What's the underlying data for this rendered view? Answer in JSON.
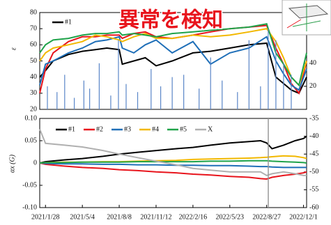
{
  "chart_data": [
    {
      "type": "line",
      "ylabel": "ε",
      "annotation": "異常を検知",
      "xlim": [
        -15,
        680
      ],
      "ylim": [
        20,
        80
      ],
      "yticks": [
        20,
        30,
        40,
        50,
        60,
        70,
        80
      ],
      "y2lim": [
        0,
        84
      ],
      "y2ticks": [
        20,
        40
      ],
      "x": [
        -15,
        0,
        20,
        60,
        96,
        130,
        160,
        192,
        200,
        230,
        260,
        288,
        330,
        384,
        430,
        480,
        530,
        576,
        600,
        620,
        640,
        660,
        680
      ],
      "series": [
        {
          "name": "#1",
          "color": "#000000",
          "values": [
            40,
            44,
            50,
            54,
            56,
            57,
            58,
            57,
            48,
            50,
            52,
            47,
            50,
            55,
            56,
            58,
            60,
            61,
            40,
            36,
            32,
            30,
            40
          ]
        },
        {
          "color": "#e8141c",
          "values": [
            30,
            45,
            55,
            62,
            65,
            65,
            66,
            66,
            64,
            67,
            68,
            65,
            64,
            66,
            68,
            70,
            71,
            72,
            58,
            48,
            36,
            30,
            50
          ]
        },
        {
          "color": "#1f6fb8",
          "values": [
            35,
            48,
            50,
            55,
            58,
            62,
            63,
            65,
            58,
            55,
            60,
            63,
            55,
            62,
            48,
            55,
            58,
            65,
            50,
            42,
            35,
            32,
            45
          ]
        },
        {
          "color": "#f2b800",
          "values": [
            50,
            55,
            58,
            60,
            62,
            66,
            65,
            63,
            62,
            65,
            67,
            64,
            64,
            66,
            65,
            66,
            68,
            70,
            62,
            52,
            40,
            35,
            50
          ]
        },
        {
          "color": "#1fa34a",
          "values": [
            55,
            60,
            63,
            64,
            66,
            67,
            67,
            68,
            66,
            67,
            66,
            65,
            67,
            68,
            69,
            70,
            71,
            73,
            55,
            48,
            40,
            35,
            55
          ]
        },
        {
          "type": "bar",
          "axis": "y2",
          "color": "#5a86c8",
          "x": [
            5,
            30,
            50,
            75,
            100,
            115,
            140,
            170,
            190,
            210,
            240,
            275,
            300,
            330,
            360,
            400,
            430,
            460,
            500,
            530,
            560,
            580,
            600,
            620,
            640
          ],
          "values": [
            20,
            15,
            30,
            10,
            25,
            18,
            40,
            12,
            60,
            22,
            15,
            35,
            20,
            28,
            30,
            18,
            45,
            25,
            15,
            60,
            20,
            70,
            60,
            40,
            30
          ]
        }
      ]
    },
    {
      "type": "line",
      "ylabel": "αx (G)",
      "xlim": [
        -15,
        680
      ],
      "xticks": [
        {
          "value": 0,
          "label": "2021/1/28"
        },
        {
          "value": 96,
          "label": "2021/5/4"
        },
        {
          "value": 192,
          "label": "2021/8/8"
        },
        {
          "value": 288,
          "label": "2021/11/12"
        },
        {
          "value": 384,
          "label": "2022/2/16"
        },
        {
          "value": 480,
          "label": "2022/5/23"
        },
        {
          "value": 576,
          "label": "2022/8/27"
        },
        {
          "value": 672,
          "label": "2022/12/1"
        }
      ],
      "ylim": [
        -0.1,
        0.1
      ],
      "yticks": [
        {
          "value": -0.1,
          "label": "-0.10"
        },
        -0.05,
        0,
        0.05,
        {
          "value": 0.1,
          "label": "0.10"
        }
      ],
      "y2lim": [
        -60,
        -35
      ],
      "y2ticks": [
        -60,
        -55,
        -50,
        -45,
        -40,
        -35
      ],
      "x": [
        -15,
        0,
        50,
        96,
        150,
        192,
        240,
        288,
        340,
        384,
        430,
        480,
        530,
        560,
        576,
        590,
        620,
        650,
        672,
        680
      ],
      "series": [
        {
          "name": "#1",
          "color": "#000000",
          "values": [
            0,
            0.003,
            0.007,
            0.01,
            0.015,
            0.02,
            0.024,
            0.028,
            0.032,
            0.035,
            0.04,
            0.045,
            0.048,
            0.05,
            0.045,
            0.032,
            0.04,
            0.05,
            0.055,
            0.06
          ]
        },
        {
          "name": "#2",
          "color": "#e8141c",
          "values": [
            0,
            -0.003,
            -0.007,
            -0.01,
            -0.012,
            -0.015,
            -0.017,
            -0.02,
            -0.022,
            -0.025,
            -0.027,
            -0.03,
            -0.032,
            -0.035,
            -0.036,
            -0.032,
            -0.028,
            -0.025,
            -0.022,
            -0.02
          ]
        },
        {
          "name": "#3",
          "color": "#1f6fb8",
          "values": [
            0,
            -0.001,
            -0.002,
            -0.002,
            -0.003,
            -0.003,
            -0.004,
            -0.004,
            -0.005,
            -0.005,
            -0.006,
            -0.006,
            -0.007,
            -0.008,
            -0.008,
            -0.009,
            -0.01,
            -0.01,
            -0.01,
            -0.01
          ]
        },
        {
          "name": "#4",
          "color": "#f2b800",
          "values": [
            0,
            0.001,
            0.002,
            0.002,
            0.003,
            0.003,
            0.004,
            0.005,
            0.006,
            0.008,
            0.009,
            0.01,
            0.011,
            0.012,
            0.013,
            0.014,
            0.016,
            0.015,
            0.012,
            0.01
          ]
        },
        {
          "name": "#5",
          "color": "#1fa34a",
          "values": [
            0,
            0.001,
            0.001,
            0.002,
            0.002,
            0.002,
            0.003,
            0.003,
            0.003,
            0.003,
            0.004,
            0.004,
            0.005,
            0.005,
            0.005,
            0.004,
            0.003,
            0.002,
            0.001,
            0
          ]
        },
        {
          "name": "X",
          "axis": "y2",
          "color": "#b0b0b0",
          "values": [
            -38,
            -42,
            -42.5,
            -43,
            -44,
            -45,
            -46,
            -47,
            -48,
            -49,
            -49.5,
            -50,
            -50,
            -50,
            -51,
            -50.5,
            -50,
            -50.5,
            -51,
            -51
          ]
        }
      ]
    }
  ]
}
